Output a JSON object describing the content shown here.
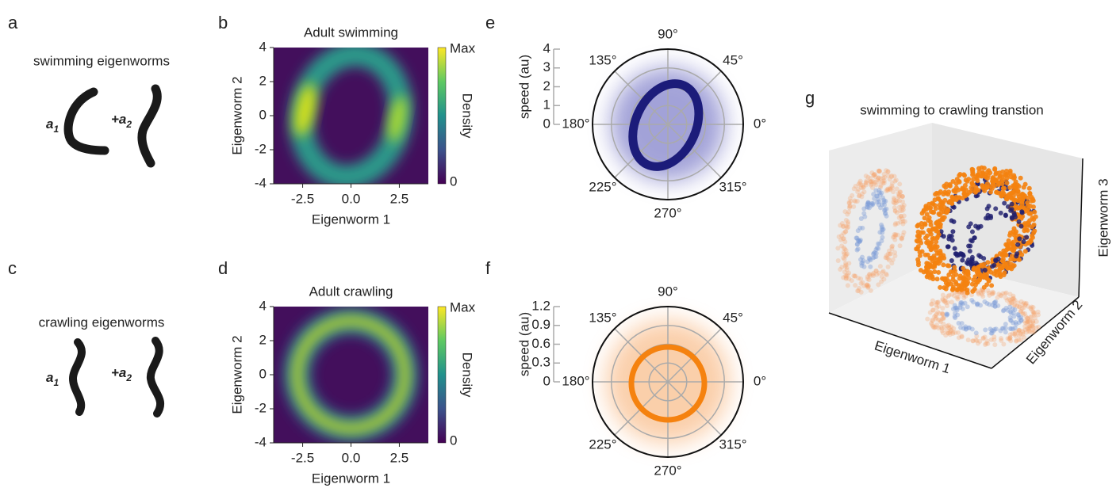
{
  "panel_labels": [
    "a",
    "b",
    "c",
    "d",
    "e",
    "f",
    "g"
  ],
  "worms": [
    {
      "title": "swimming eigenworms",
      "coef1": "a",
      "sub1": "1",
      "coef2": "+a",
      "sub2": "2"
    },
    {
      "title": "crawling eigenworms",
      "coef1": "a",
      "sub1": "1",
      "coef2": "+a",
      "sub2": "2"
    }
  ],
  "chart_data": [
    {
      "type": "heatmap",
      "title": "Adult swimming",
      "xlabel": "Eigenworm 1",
      "ylabel": "Eigenworm 2",
      "xlim": [
        -4,
        4
      ],
      "ylim": [
        -4,
        4
      ],
      "xticks": [
        -2.5,
        {
          "value": 0,
          "label": "0.0"
        },
        2.5
      ],
      "yticks": [
        4,
        2,
        0,
        -2,
        -4
      ],
      "colorbar": {
        "label": "Density",
        "ticks": [
          "Max",
          "0"
        ]
      }
    },
    {
      "type": "heatmap",
      "title": "Adult crawling",
      "xlabel": "Eigenworm 1",
      "ylabel": "Eigenworm 2",
      "xlim": [
        -4,
        4
      ],
      "ylim": [
        -4,
        4
      ],
      "xticks": [
        -2.5,
        {
          "value": 0,
          "label": "0.0"
        },
        2.5
      ],
      "yticks": [
        4,
        2,
        0,
        -2,
        -4
      ],
      "colorbar": {
        "label": "Density",
        "ticks": [
          "Max",
          "0"
        ]
      }
    },
    {
      "type": "polar",
      "rlabel": "speed (au)",
      "rlim": [
        0,
        4
      ],
      "rticks": [
        0,
        1,
        2,
        3,
        4
      ],
      "color": "#1c1c7a",
      "angle_ticks": [
        {
          "value": 90,
          "label": "90°"
        },
        {
          "value": 45,
          "label": "45°"
        },
        {
          "value": 0,
          "label": "0°"
        },
        {
          "value": 315,
          "label": "315°"
        },
        {
          "value": 270,
          "label": "270°"
        },
        {
          "value": 225,
          "label": "225°"
        },
        {
          "value": 180,
          "label": "180°"
        },
        {
          "value": 135,
          "label": "135°"
        }
      ]
    },
    {
      "type": "polar",
      "rlabel": "speed (au)",
      "rlim": [
        0,
        1.2
      ],
      "rticks": [
        0,
        0.3,
        0.6,
        0.9,
        1.2
      ],
      "color": "#f5820f",
      "angle_ticks": [
        {
          "value": 90,
          "label": "90°"
        },
        {
          "value": 45,
          "label": "45°"
        },
        {
          "value": 0,
          "label": "0°"
        },
        {
          "value": 315,
          "label": "315°"
        },
        {
          "value": 270,
          "label": "270°"
        },
        {
          "value": 225,
          "label": "225°"
        },
        {
          "value": 180,
          "label": "180°"
        },
        {
          "value": 135,
          "label": "135°"
        }
      ]
    },
    {
      "type": "scatter3d",
      "title": "swimming to crawling transtion",
      "xlabel": "Eigenworm 1",
      "ylabel": "Eigenworm 2",
      "zlabel": "Eigenworm 3"
    }
  ]
}
